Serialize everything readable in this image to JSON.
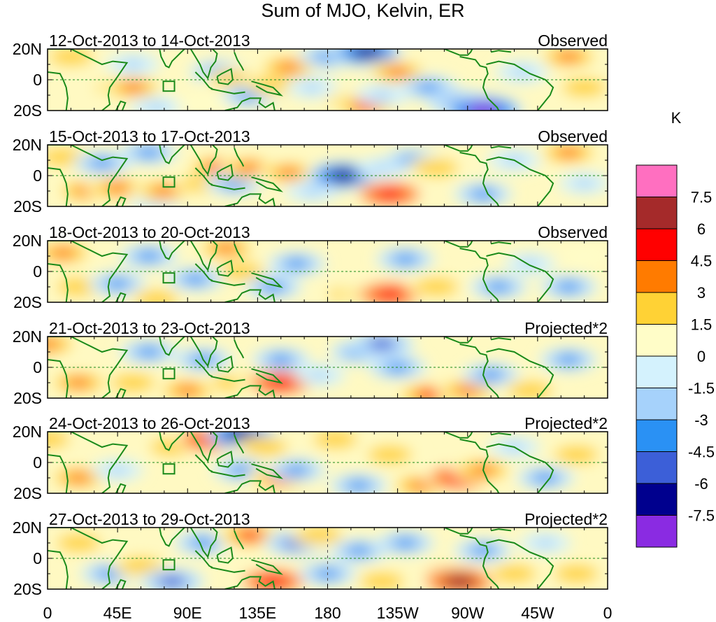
{
  "chart_data": {
    "type": "heatmap",
    "title": "Sum of MJO, Kelvin, ER",
    "x_ticks": [
      "0",
      "45E",
      "90E",
      "135E",
      "180",
      "135W",
      "90W",
      "45W",
      "0"
    ],
    "y_ticks": [
      "20N",
      "0",
      "20S"
    ],
    "xlim": [
      0,
      360
    ],
    "ylim": [
      -20,
      20
    ],
    "colorbar": {
      "unit": "K",
      "levels": [
        "7.5",
        "6",
        "4.5",
        "3",
        "1.5",
        "0",
        "-1.5",
        "-3",
        "-4.5",
        "-6",
        "-7.5"
      ],
      "colors": [
        "#ff6fc0",
        "#a52a2a",
        "#ff0000",
        "#ff7b00",
        "#ffd235",
        "#fffdc8",
        "#d4f2fd",
        "#a6d2fb",
        "#2a91f4",
        "#3c5fd8",
        "#00008e",
        "#8a2be2"
      ]
    },
    "panels": [
      {
        "date_range": "12-Oct-2013 to 14-Oct-2013",
        "label": "Observed"
      },
      {
        "date_range": "15-Oct-2013 to 17-Oct-2013",
        "label": "Observed"
      },
      {
        "date_range": "18-Oct-2013 to 20-Oct-2013",
        "label": "Observed"
      },
      {
        "date_range": "21-Oct-2013 to 23-Oct-2013",
        "label": "Projected*2"
      },
      {
        "date_range": "24-Oct-2013 to 26-Oct-2013",
        "label": "Projected*2"
      },
      {
        "date_range": "27-Oct-2013 to 29-Oct-2013",
        "label": "Projected*2"
      }
    ],
    "anomalies": [
      [
        [
          15,
          15,
          3
        ],
        [
          45,
          -5,
          3
        ],
        [
          55,
          -5,
          4
        ],
        [
          55,
          10,
          -2
        ],
        [
          70,
          -18,
          -2
        ],
        [
          100,
          -15,
          1.5
        ],
        [
          110,
          5,
          -3
        ],
        [
          120,
          0,
          3
        ],
        [
          130,
          -10,
          -3
        ],
        [
          145,
          -3,
          3
        ],
        [
          155,
          8,
          4
        ],
        [
          170,
          -5,
          -1.5
        ],
        [
          180,
          15,
          -3
        ],
        [
          195,
          -15,
          3.5
        ],
        [
          205,
          -17,
          5
        ],
        [
          215,
          -10,
          -2
        ],
        [
          205,
          18,
          -6
        ],
        [
          225,
          5,
          4
        ],
        [
          245,
          -5,
          -3
        ],
        [
          265,
          -15,
          -4.5
        ],
        [
          280,
          -20,
          -7.5
        ],
        [
          305,
          5,
          -2
        ],
        [
          335,
          15,
          4
        ],
        [
          345,
          -5,
          3
        ]
      ],
      [
        [
          10,
          12,
          3
        ],
        [
          25,
          -10,
          4
        ],
        [
          45,
          -8,
          4
        ],
        [
          35,
          8,
          -3
        ],
        [
          65,
          15,
          -3
        ],
        [
          70,
          -18,
          -2
        ],
        [
          75,
          -10,
          4
        ],
        [
          100,
          -5,
          3
        ],
        [
          110,
          5,
          5
        ],
        [
          120,
          -5,
          -3
        ],
        [
          130,
          5,
          4
        ],
        [
          155,
          2,
          3.5
        ],
        [
          170,
          -10,
          -2
        ],
        [
          190,
          0,
          -6
        ],
        [
          215,
          5,
          -1.5
        ],
        [
          220,
          -12,
          6
        ],
        [
          235,
          10,
          -3
        ],
        [
          250,
          5,
          3
        ],
        [
          280,
          -12,
          -3
        ],
        [
          300,
          10,
          -2
        ],
        [
          335,
          15,
          4
        ],
        [
          345,
          -5,
          -1.5
        ]
      ],
      [
        [
          10,
          12,
          4
        ],
        [
          20,
          -10,
          3
        ],
        [
          45,
          -8,
          -3
        ],
        [
          70,
          -18,
          3
        ],
        [
          65,
          10,
          -3
        ],
        [
          115,
          15,
          4
        ],
        [
          125,
          0,
          3
        ],
        [
          95,
          -5,
          -3
        ],
        [
          145,
          -10,
          -3
        ],
        [
          160,
          5,
          -3
        ],
        [
          195,
          -15,
          3
        ],
        [
          210,
          -15,
          5
        ],
        [
          220,
          -15,
          6
        ],
        [
          230,
          8,
          -3
        ],
        [
          250,
          -10,
          3
        ],
        [
          290,
          -10,
          -3
        ],
        [
          310,
          5,
          -1.5
        ],
        [
          335,
          -10,
          -3
        ],
        [
          345,
          10,
          1.5
        ]
      ],
      [
        [
          0,
          15,
          4
        ],
        [
          20,
          -10,
          4
        ],
        [
          55,
          -10,
          3
        ],
        [
          65,
          10,
          -3
        ],
        [
          90,
          -15,
          4
        ],
        [
          100,
          5,
          -3
        ],
        [
          120,
          -10,
          3
        ],
        [
          140,
          -8,
          4
        ],
        [
          150,
          -10,
          6
        ],
        [
          150,
          5,
          -3
        ],
        [
          175,
          -5,
          -1.5
        ],
        [
          200,
          10,
          -3
        ],
        [
          215,
          15,
          -4.5
        ],
        [
          225,
          0,
          -3
        ],
        [
          245,
          -18,
          5
        ],
        [
          270,
          -15,
          4
        ],
        [
          285,
          -5,
          -3
        ],
        [
          310,
          -15,
          3
        ],
        [
          335,
          5,
          -3
        ]
      ],
      [
        [
          0,
          15,
          3
        ],
        [
          20,
          -10,
          4
        ],
        [
          45,
          -5,
          -1.5
        ],
        [
          80,
          10,
          3
        ],
        [
          105,
          15,
          6
        ],
        [
          125,
          18,
          -6
        ],
        [
          125,
          -5,
          -3
        ],
        [
          140,
          10,
          3
        ],
        [
          150,
          -10,
          5
        ],
        [
          160,
          -5,
          -3
        ],
        [
          185,
          15,
          3
        ],
        [
          200,
          -15,
          -3
        ],
        [
          220,
          5,
          3
        ],
        [
          240,
          -15,
          4
        ],
        [
          265,
          -10,
          6
        ],
        [
          280,
          -5,
          4
        ],
        [
          300,
          10,
          -1.5
        ],
        [
          320,
          -10,
          -3
        ],
        [
          340,
          5,
          3
        ]
      ],
      [
        [
          20,
          10,
          3
        ],
        [
          40,
          -10,
          -3
        ],
        [
          60,
          -5,
          3
        ],
        [
          80,
          -15,
          -4.5
        ],
        [
          100,
          10,
          -3
        ],
        [
          130,
          15,
          5
        ],
        [
          145,
          -15,
          6
        ],
        [
          160,
          10,
          -4.5
        ],
        [
          175,
          15,
          3
        ],
        [
          180,
          -10,
          -3
        ],
        [
          200,
          5,
          -3
        ],
        [
          215,
          -15,
          3
        ],
        [
          230,
          10,
          -3
        ],
        [
          260,
          -12,
          6
        ],
        [
          265,
          -15,
          7.5
        ],
        [
          280,
          5,
          -3
        ],
        [
          300,
          -10,
          3
        ],
        [
          320,
          10,
          -1.5
        ],
        [
          340,
          -10,
          3
        ]
      ]
    ]
  }
}
